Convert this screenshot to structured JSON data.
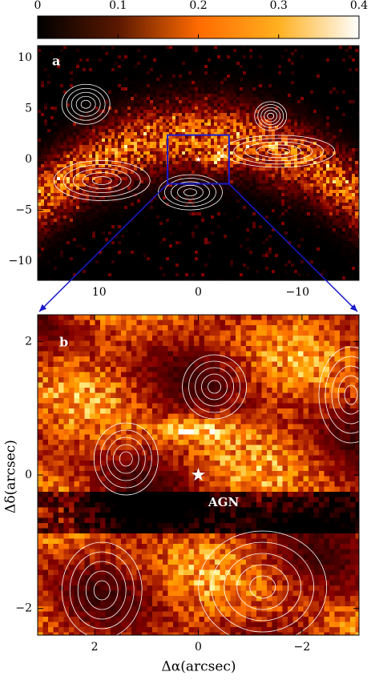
{
  "chart_data": [
    {
      "type": "colorbar",
      "clim": [
        0,
        0.4
      ],
      "xticks": [
        0,
        0.1,
        0.2,
        0.3,
        0.4
      ]
    },
    {
      "type": "image",
      "panel_label": "a",
      "xlim": [
        16.2,
        -16.2
      ],
      "ylim": [
        -11.9,
        11.2
      ],
      "xticks": [
        10,
        0,
        {
          "value": -10,
          "label": "−10"
        }
      ],
      "yticks": [
        {
          "value": -10,
          "label": "−10"
        },
        {
          "value": -5,
          "label": "−5"
        },
        0,
        5,
        10
      ]
    },
    {
      "type": "image",
      "panel_label": "b",
      "annotation": "AGN",
      "xlabel": "Δα(arcsec)",
      "ylabel": "Δδ(arcsec)",
      "xlim": [
        3.1,
        -3.1
      ],
      "ylim": [
        -2.4,
        2.4
      ],
      "xticks": [
        2,
        0,
        {
          "value": -2,
          "label": "−2"
        }
      ],
      "yticks": [
        {
          "value": -2,
          "label": "−2"
        },
        0,
        2
      ]
    }
  ]
}
